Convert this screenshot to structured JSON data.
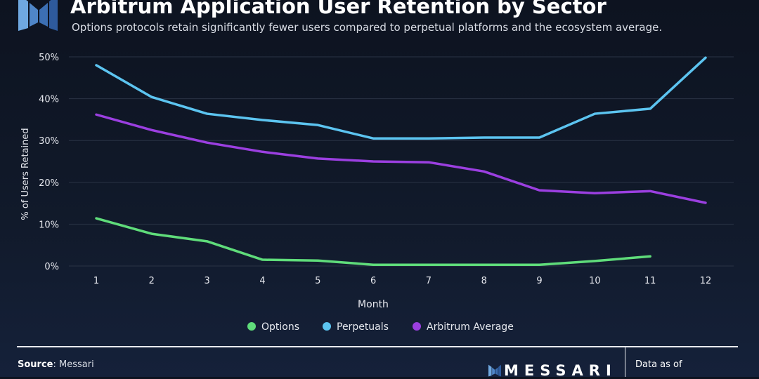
{
  "header": {
    "title": "Arbitrum Application User Retention by Sector",
    "subtitle": "Options protocols retain significantly fewer users compared to perpetual platforms and the ecosystem average."
  },
  "footer": {
    "source_label": "Source",
    "source_value": ": Messari",
    "brand": "MESSARI",
    "data_as_of": "Data as of"
  },
  "colors": {
    "background": "#0f1625",
    "options": "#5fdc7a",
    "perpetuals": "#5cc4f0",
    "average": "#9b3fe0",
    "grid": "#2a3345"
  },
  "chart_data": {
    "type": "line",
    "title": "Arbitrum Application User Retention by Sector",
    "xlabel": "Month",
    "ylabel": "% of Users Retained",
    "x": [
      1,
      2,
      3,
      4,
      5,
      6,
      7,
      8,
      9,
      10,
      11,
      12
    ],
    "x_ticks": [
      "1",
      "2",
      "3",
      "4",
      "5",
      "6",
      "7",
      "8",
      "9",
      "10",
      "11",
      "12"
    ],
    "y_ticks": [
      "0%",
      "10%",
      "20%",
      "30%",
      "40%",
      "50%"
    ],
    "ylim": [
      0,
      50
    ],
    "grid": "horizontal",
    "legend": "bottom",
    "series": [
      {
        "name": "Options",
        "color": "#5fdc7a",
        "values": [
          11.4,
          7.7,
          5.9,
          1.5,
          1.3,
          0.3,
          0.3,
          0.3,
          0.3,
          1.2,
          2.3,
          null
        ]
      },
      {
        "name": "Perpetuals",
        "color": "#5cc4f0",
        "values": [
          48.0,
          40.4,
          36.4,
          34.9,
          33.7,
          30.5,
          30.5,
          30.7,
          30.7,
          36.4,
          37.6,
          49.8
        ]
      },
      {
        "name": "Arbitrum Average",
        "color": "#9b3fe0",
        "values": [
          36.2,
          32.5,
          29.5,
          27.3,
          25.7,
          25.0,
          24.8,
          22.6,
          18.1,
          17.4,
          17.9,
          15.1
        ]
      }
    ]
  }
}
